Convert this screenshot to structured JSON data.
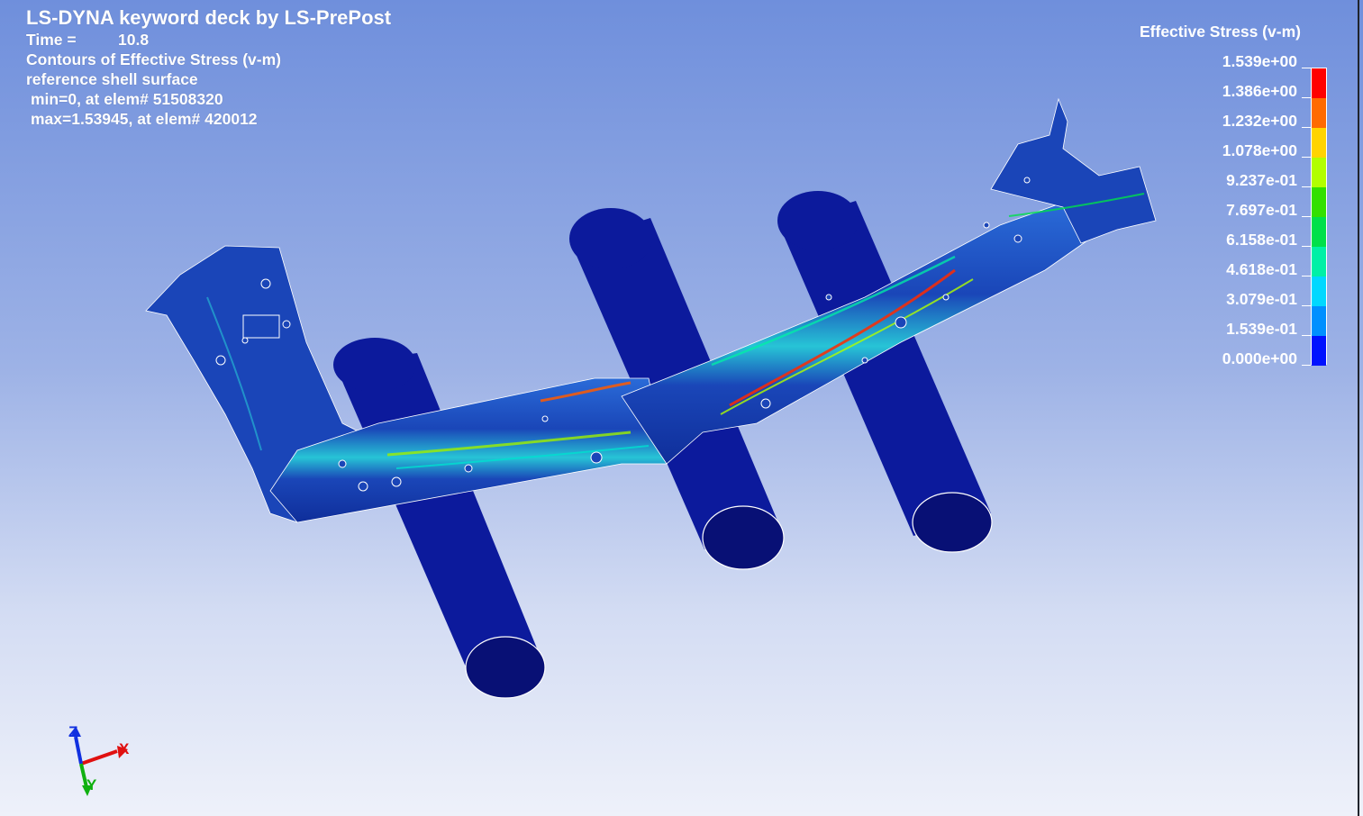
{
  "header": {
    "title": "LS-DYNA keyword deck by LS-PrePost",
    "time_label": "Time =",
    "time_value": "10.8",
    "contours": "Contours of Effective Stress (v-m)",
    "surface": "reference shell surface",
    "min": "min=0, at elem# 51508320",
    "max": "max=1.53945, at elem# 420012"
  },
  "legend": {
    "title": "Effective Stress (v-m)",
    "labels": [
      "1.539e+00",
      "1.386e+00",
      "1.232e+00",
      "1.078e+00",
      "9.237e-01",
      "7.697e-01",
      "6.158e-01",
      "4.618e-01",
      "3.079e-01",
      "1.539e-01",
      "0.000e+00"
    ],
    "colors": [
      "#ff0000",
      "#ff6a00",
      "#ffd400",
      "#b2ff00",
      "#33e000",
      "#00e04a",
      "#00f0a6",
      "#00d8ff",
      "#0090ff",
      "#0012ff"
    ]
  },
  "triad": {
    "x": "X",
    "y": "Y",
    "z": "Z"
  },
  "colors": {
    "cylinder": "#0c1a9c",
    "cylinder_dark": "#081075",
    "part_base": "#1a45b8",
    "x_axis": "#e01010",
    "y_axis": "#10b010",
    "z_axis": "#1030e0"
  }
}
